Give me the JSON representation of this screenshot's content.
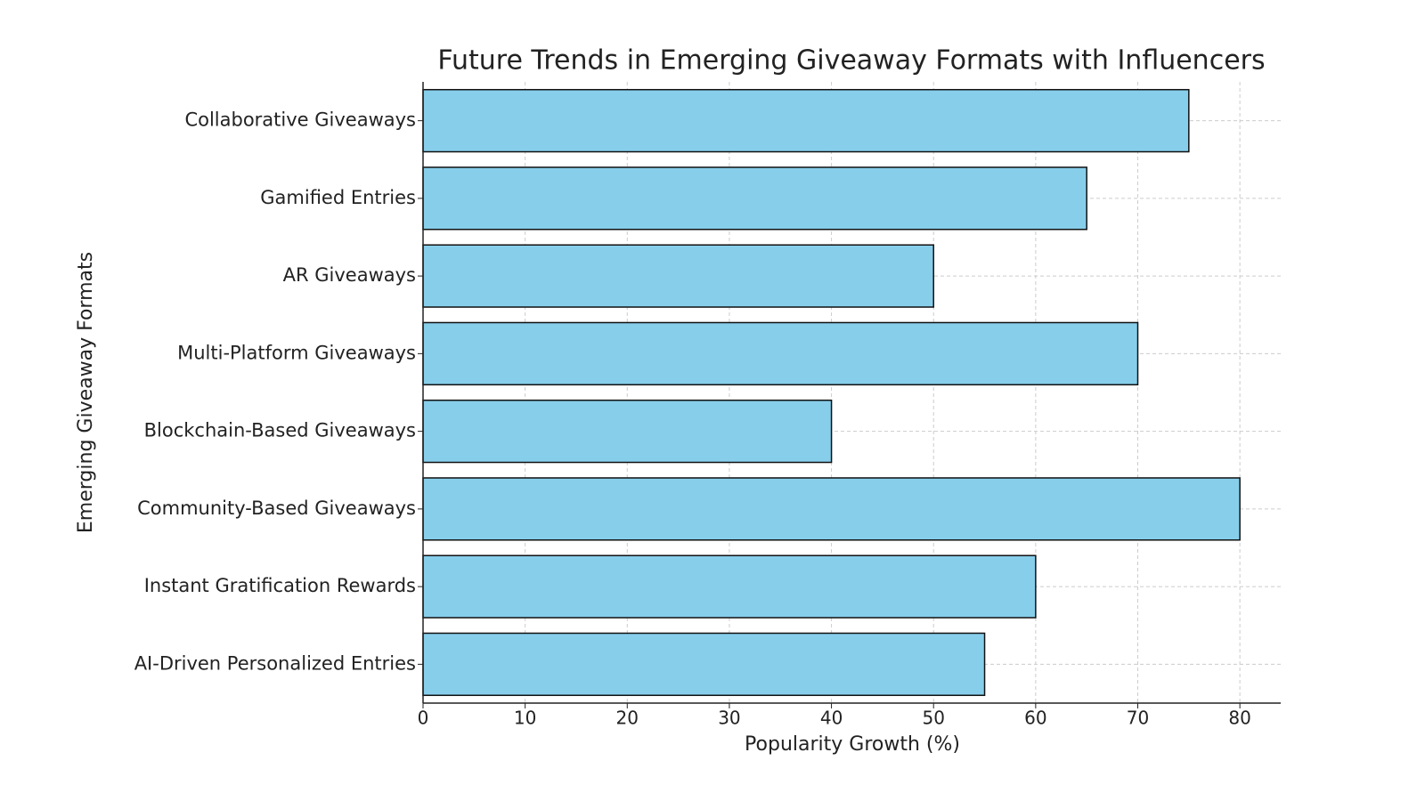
{
  "chart_data": {
    "type": "barh",
    "title": "Future Trends in Emerging Giveaway Formats with Influencers",
    "x_label": "Popularity Growth (%)",
    "y_label": "Emerging Giveaway Formats",
    "categories": [
      "Collaborative Giveaways",
      "Gamified Entries",
      "AR Giveaways",
      "Multi-Platform Giveaways",
      "Blockchain-Based Giveaways",
      "Community-Based Giveaways",
      "Instant Gratification Rewards",
      "AI-Driven Personalized Entries"
    ],
    "values": [
      75,
      65,
      50,
      70,
      40,
      80,
      60,
      55
    ],
    "color": "#87ceeb",
    "xlim": [
      0,
      84
    ],
    "xticks": [
      0,
      10,
      20,
      30,
      40,
      50,
      60,
      70,
      80
    ],
    "grid": true
  }
}
